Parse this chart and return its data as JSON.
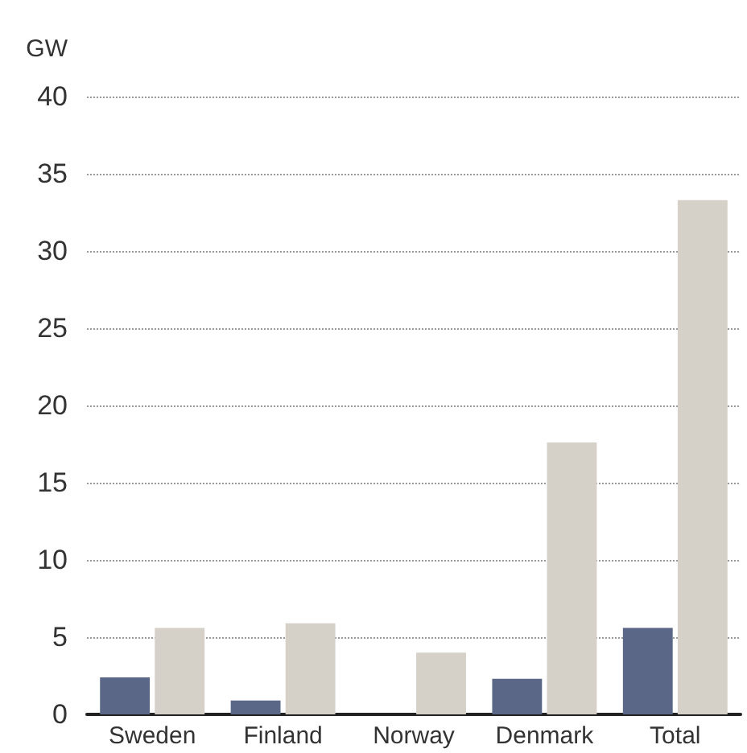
{
  "chart_data": {
    "type": "bar",
    "ylabel": "GW",
    "categories": [
      "Sweden",
      "Finland",
      "Norway",
      "Denmark",
      "Total"
    ],
    "series": [
      {
        "color": "#5b6787",
        "values": [
          2.4,
          0.9,
          0,
          2.3,
          5.6
        ]
      },
      {
        "color": "#d5d1c9",
        "values": [
          5.6,
          5.9,
          4.0,
          17.6,
          33.3
        ]
      }
    ],
    "ylim": [
      0,
      40
    ],
    "yticks": [
      0,
      5,
      10,
      15,
      20,
      25,
      30,
      35,
      40
    ],
    "grid": "y"
  }
}
